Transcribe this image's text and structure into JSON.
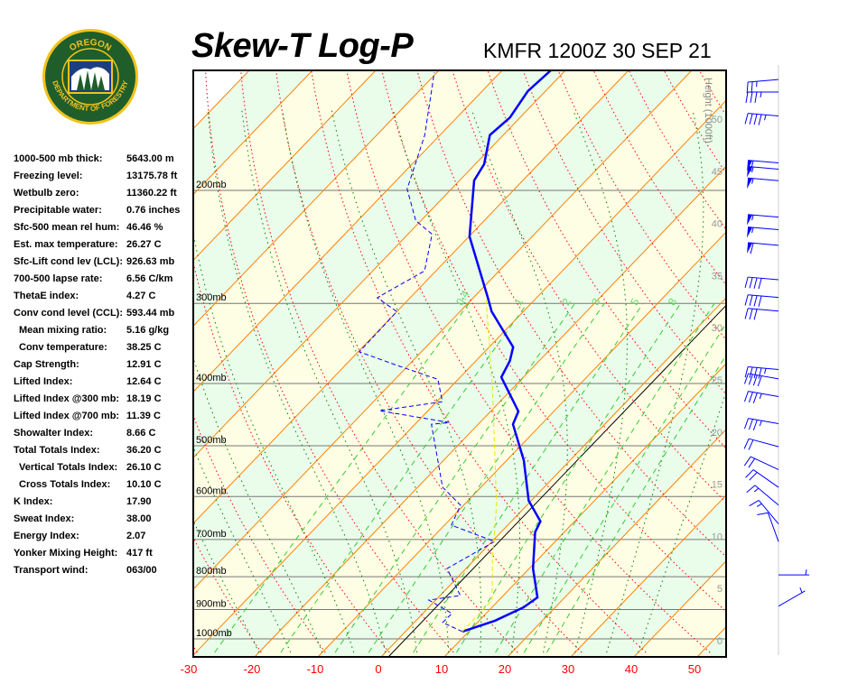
{
  "logo": {
    "top_text": "OREGON",
    "bottom_text": "DEPARTMENT OF FORESTRY"
  },
  "header": {
    "title": "Skew-T Log-P",
    "station_time": "KMFR 1200Z 30 SEP 21"
  },
  "stats": [
    {
      "label": "1000-500 mb thick:",
      "value": "5643.00 m",
      "indent": false
    },
    {
      "label": "Freezing level:",
      "value": "13175.78 ft",
      "indent": false
    },
    {
      "label": "Wetbulb zero:",
      "value": "11360.22 ft",
      "indent": false
    },
    {
      "label": "Precipitable water:",
      "value": "0.76 inches",
      "indent": false
    },
    {
      "label": "Sfc-500 mean rel hum:",
      "value": "46.46 %",
      "indent": false
    },
    {
      "label": "Est. max temperature:",
      "value": "26.27 C",
      "indent": false
    },
    {
      "label": "Sfc-Lift cond lev (LCL):",
      "value": "926.63 mb",
      "indent": false
    },
    {
      "label": "700-500 lapse rate:",
      "value": "6.56 C/km",
      "indent": false
    },
    {
      "label": "ThetaE index:",
      "value": "4.27 C",
      "indent": false
    },
    {
      "label": "Conv cond level (CCL):",
      "value": "593.44 mb",
      "indent": false
    },
    {
      "label": "Mean mixing ratio:",
      "value": "5.16 g/kg",
      "indent": true
    },
    {
      "label": "Conv temperature:",
      "value": "38.25 C",
      "indent": true
    },
    {
      "label": "Cap Strength:",
      "value": "12.91 C",
      "indent": false
    },
    {
      "label": "Lifted Index:",
      "value": "12.64 C",
      "indent": false
    },
    {
      "label": "Lifted Index @300 mb:",
      "value": "18.19 C",
      "indent": false
    },
    {
      "label": "Lifted Index @700 mb:",
      "value": "11.39 C",
      "indent": false
    },
    {
      "label": "Showalter Index:",
      "value": "8.66 C",
      "indent": false
    },
    {
      "label": "Total Totals Index:",
      "value": "36.20 C",
      "indent": false
    },
    {
      "label": "Vertical Totals Index:",
      "value": "26.10 C",
      "indent": true
    },
    {
      "label": "Cross Totals Index:",
      "value": "10.10 C",
      "indent": true
    },
    {
      "label": "K Index:",
      "value": "17.90",
      "indent": false
    },
    {
      "label": "Sweat Index:",
      "value": "38.00",
      "indent": false
    },
    {
      "label": "Energy Index:",
      "value": "2.07",
      "indent": false
    },
    {
      "label": "Yonker Mixing Height:",
      "value": "417 ft",
      "indent": false
    },
    {
      "label": "Transport wind:",
      "value": "063/00",
      "indent": false
    }
  ],
  "chart_data": {
    "type": "line",
    "xlabel": "",
    "ylabel": "",
    "x_ticks": [
      "-30",
      "-20",
      "-10",
      "0",
      "10",
      "20",
      "30",
      "40",
      "50"
    ],
    "pressure_labels": [
      "200mb",
      "300mb",
      "400mb",
      "500mb",
      "600mb",
      "700mb",
      "800mb",
      "900mb",
      "1000mb"
    ],
    "pressure_levels": [
      200,
      300,
      400,
      500,
      600,
      700,
      800,
      900,
      1000
    ],
    "height_axis_label": "Height (1000ft)",
    "height_ticks": [
      "0",
      "5",
      "10",
      "15",
      "20",
      "25",
      "30",
      "35",
      "40",
      "45",
      "50"
    ],
    "mixing_ratio_labels": [
      "0.4",
      "1",
      "2",
      "3",
      "5",
      "8"
    ],
    "mixing_ratio_values": [
      0.4,
      1,
      2,
      3,
      5,
      8
    ],
    "x_scale": "skewed temperature (C)",
    "y_scale": "log pressure (mb)",
    "ylim": [
      130,
      1050
    ],
    "colors": {
      "temperature": "#0000ff",
      "dewpoint": "#0000ff",
      "parcel": "#e8e800",
      "isotherm": "#ff8000",
      "dry_adiabat": "#ff0000",
      "moist_adiabat": "#008000",
      "mixing_ratio": "#33cc33",
      "band_a": "#fefee4",
      "band_b": "#eafcea"
    },
    "series": [
      {
        "key": "temperature",
        "style": "solid",
        "p": [
          974,
          937,
          893,
          862,
          777,
          682,
          656,
          609,
          527,
          463,
          442,
          391,
          369,
          351,
          309,
          294,
          236,
          193,
          182,
          164,
          154,
          140,
          130
        ],
        "t": [
          9.0,
          12.5,
          15.0,
          15.7,
          10.6,
          5.4,
          4.6,
          -0.4,
          -7.3,
          -14.5,
          -15.6,
          -23.5,
          -24.6,
          -26.2,
          -35.0,
          -37.7,
          -49.9,
          -57.7,
          -58.6,
          -62.1,
          -61.6,
          -62.8,
          -62.3
        ]
      },
      {
        "key": "dewpoint",
        "style": "dashed",
        "p": [
          974,
          943,
          913,
          870,
          856,
          777,
          705,
          665,
          619,
          580,
          527,
          463,
          460,
          441,
          427,
          394,
          375,
          357,
          309,
          294,
          267,
          234,
          223,
          199,
          164,
          131
        ],
        "t": [
          9.0,
          4.5,
          4.6,
          -1.1,
          3.2,
          -3.0,
          0.4,
          -8.9,
          -10.5,
          -16.1,
          -20.9,
          -27.4,
          -24.8,
          -37.7,
          -29.1,
          -33.2,
          -41.7,
          -49.8,
          -50.0,
          -55.2,
          -51.8,
          -56.2,
          -60.8,
          -67.0,
          -72.4,
          -80.4
        ]
      },
      {
        "key": "parcel",
        "style": "dashed",
        "p": [
          974,
          870,
          752,
          619,
          406,
          294
        ],
        "t": [
          9.0,
          8.9,
          2.8,
          -4.8,
          -23.3,
          -38.0
        ]
      }
    ],
    "winds": [
      {
        "height_kft": 53.8,
        "dir": 265,
        "kt": 25
      },
      {
        "height_kft": 52.6,
        "dir": 270,
        "kt": 35
      },
      {
        "height_kft": 50.3,
        "dir": 275,
        "kt": 45
      },
      {
        "height_kft": 45.8,
        "dir": 275,
        "kt": 60
      },
      {
        "height_kft": 45.2,
        "dir": 275,
        "kt": 55
      },
      {
        "height_kft": 44.1,
        "dir": 275,
        "kt": 55
      },
      {
        "height_kft": 40.6,
        "dir": 275,
        "kt": 55
      },
      {
        "height_kft": 39.4,
        "dir": 275,
        "kt": 55
      },
      {
        "height_kft": 37.9,
        "dir": 275,
        "kt": 60
      },
      {
        "height_kft": 34.6,
        "dir": 275,
        "kt": 40
      },
      {
        "height_kft": 32.9,
        "dir": 275,
        "kt": 40
      },
      {
        "height_kft": 31.6,
        "dir": 275,
        "kt": 30
      },
      {
        "height_kft": 26.0,
        "dir": 275,
        "kt": 45
      },
      {
        "height_kft": 25.1,
        "dir": 280,
        "kt": 40
      },
      {
        "height_kft": 23.4,
        "dir": 280,
        "kt": 35
      },
      {
        "height_kft": 20.8,
        "dir": 280,
        "kt": 35
      },
      {
        "height_kft": 18.6,
        "dir": 285,
        "kt": 20
      },
      {
        "height_kft": 16.4,
        "dir": 295,
        "kt": 20
      },
      {
        "height_kft": 14.7,
        "dir": 305,
        "kt": 20
      },
      {
        "height_kft": 13.0,
        "dir": 310,
        "kt": 15
      },
      {
        "height_kft": 11.2,
        "dir": 320,
        "kt": 15
      },
      {
        "height_kft": 9.5,
        "dir": 340,
        "kt": 10
      },
      {
        "height_kft": 6.3,
        "dir": 90,
        "kt": 5
      },
      {
        "height_kft": 3.3,
        "dir": 60,
        "kt": 5
      }
    ]
  }
}
